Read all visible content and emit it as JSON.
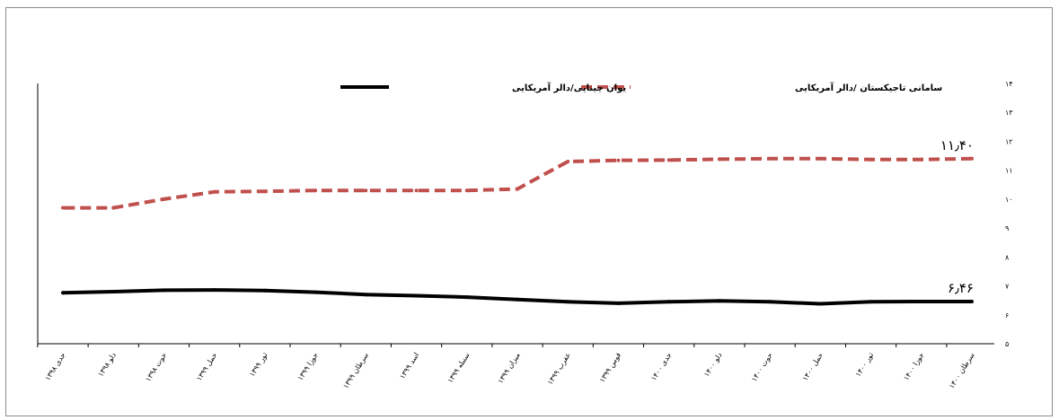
{
  "chart_data": {
    "type": "line",
    "title": "",
    "xlabel": "",
    "ylabel": "",
    "ylim": [
      5,
      14
    ],
    "y_ticks": [
      5,
      6,
      7,
      8,
      9,
      10,
      11,
      12,
      13,
      14
    ],
    "y_tick_labels": [
      "۵",
      "۶",
      "۷",
      "۸",
      "۹",
      "۱۰",
      "۱۱",
      "۱۲",
      "۱۳",
      "۱۴"
    ],
    "y_axis_side": "right",
    "x_axis_direction": "right-to-left",
    "grid": false,
    "legend_position": "top",
    "categories": [
      "سرطان ۱۴۰۰",
      "جوزا ۱۴۰۰",
      "ثور ۱۴۰۰",
      "حمل ۱۴۰۰",
      "حوت ۱۴۰۰",
      "دلو ۱۴۰۰",
      "جدی ۱۴۰۰",
      "قوس ۱۳۹۹",
      "عقرب ۱۳۹۹",
      "میزان ۱۳۹۹",
      "سنبله ۱۳۹۹",
      "اسد ۱۳۹۹",
      "سرطان ۱۳۹۹",
      "جوزا ۱۳۹۹",
      "ثور ۱۳۹۹",
      "حمل ۱۳۹۹",
      "حوت ۱۳۹۸",
      "دلو ۱۳۹۸",
      "جدی ۱۳۹۸"
    ],
    "series": [
      {
        "name": "سامانی تاجیکستان /دالر آمریکایی",
        "color": "#c0504d",
        "dash": "dashed",
        "values": [
          11.4,
          11.37,
          11.37,
          11.4,
          11.4,
          11.38,
          11.35,
          11.34,
          11.3,
          10.35,
          10.3,
          10.3,
          10.3,
          10.3,
          10.27,
          10.25,
          10.0,
          9.7,
          9.7
        ],
        "end_label": "۱۱٫۴۰"
      },
      {
        "name": "یوان چینایی/دالر آمریکایی",
        "color": "#000000",
        "dash": "solid",
        "values": [
          6.46,
          6.46,
          6.45,
          6.38,
          6.45,
          6.48,
          6.45,
          6.4,
          6.45,
          6.53,
          6.61,
          6.66,
          6.7,
          6.78,
          6.84,
          6.86,
          6.85,
          6.8,
          6.76
        ],
        "end_label": "۶٫۴۶"
      }
    ]
  }
}
